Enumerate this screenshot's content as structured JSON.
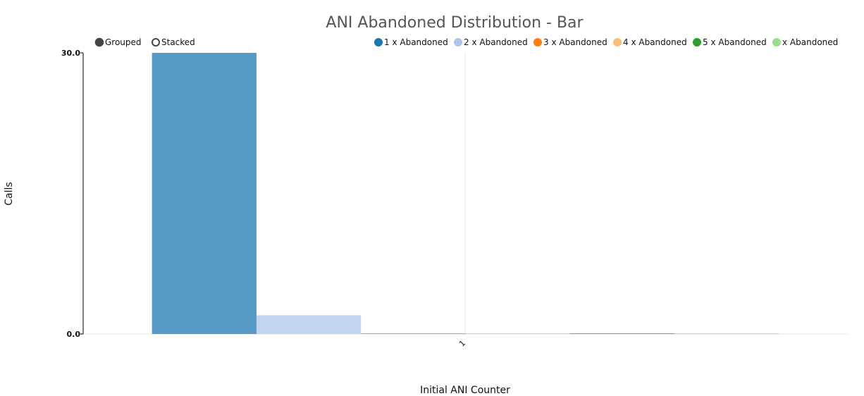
{
  "chart_data": {
    "type": "bar",
    "title": "ANI Abandoned Distribution - Bar",
    "xlabel": "Initial ANI Counter",
    "ylabel": "Calls",
    "categories": [
      "1"
    ],
    "ylim": [
      0,
      30
    ],
    "y_ticks": [
      "0.0",
      "30.0"
    ],
    "grid": true,
    "legend_position": "top-right",
    "controls": {
      "grouped_label": "Grouped",
      "stacked_label": "Stacked",
      "selected": "Grouped"
    },
    "series": [
      {
        "name": "1 x Abandoned",
        "color": "#1f77b4",
        "values": [
          30
        ]
      },
      {
        "name": "2 x Abandoned",
        "color": "#aec7e8",
        "values": [
          2
        ]
      },
      {
        "name": "3 x Abandoned",
        "color": "#ff7f0e",
        "values": [
          0
        ]
      },
      {
        "name": "4 x Abandoned",
        "color": "#ffbb78",
        "values": [
          0
        ]
      },
      {
        "name": "5 x Abandoned",
        "color": "#2ca02c",
        "values": [
          0
        ]
      },
      {
        "name": "x Abandoned",
        "color": "#98df8a",
        "values": [
          0
        ]
      }
    ]
  }
}
